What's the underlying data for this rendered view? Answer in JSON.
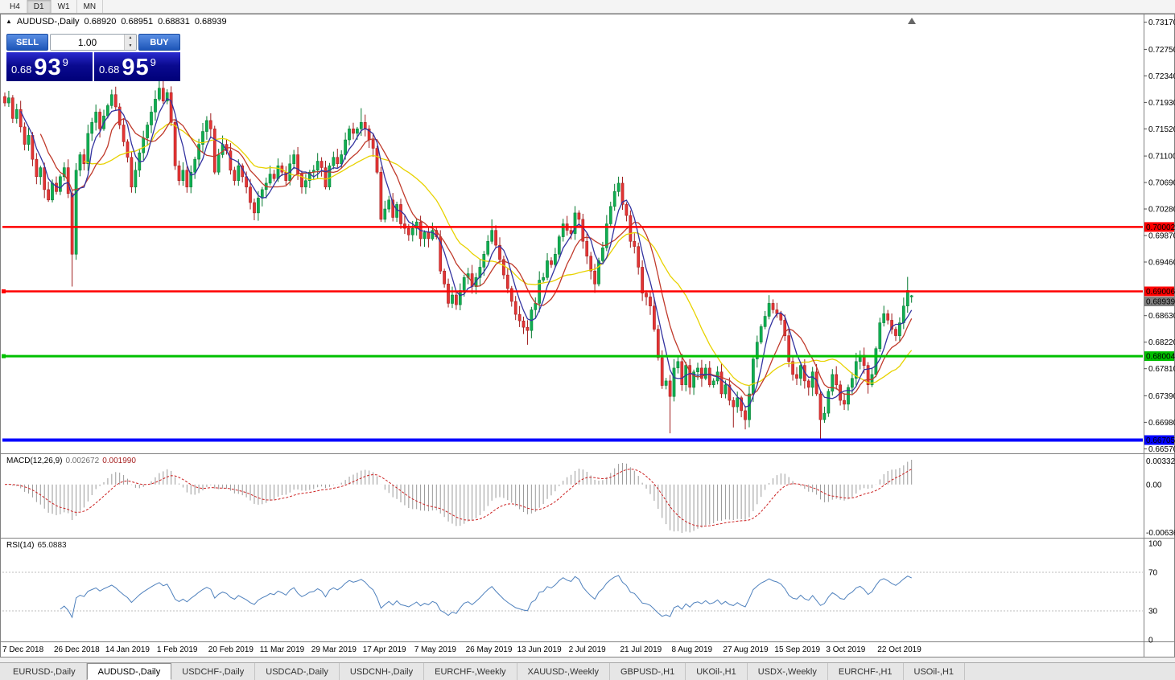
{
  "toolbar": {
    "timeframes": [
      {
        "label": "H4",
        "active": false
      },
      {
        "label": "D1",
        "active": true
      },
      {
        "label": "W1",
        "active": false
      },
      {
        "label": "MN",
        "active": false
      }
    ]
  },
  "chart_header": {
    "symbol": "AUDUSD-,Daily",
    "open": "0.68920",
    "high": "0.68951",
    "low": "0.68831",
    "close": "0.68939"
  },
  "trade_panel": {
    "sell_label": "SELL",
    "buy_label": "BUY",
    "volume": "1.00",
    "sell_price": {
      "base": "0.68",
      "big": "93",
      "sup": "9"
    },
    "buy_price": {
      "base": "0.68",
      "big": "95",
      "sup": "9"
    }
  },
  "price_axis": {
    "ticks": [
      "0.73170",
      "0.72750",
      "0.72340",
      "0.71930",
      "0.71520",
      "0.71100",
      "0.70690",
      "0.70280",
      "0.69870",
      "0.69460",
      "0.68630",
      "0.68220",
      "0.67810",
      "0.67390",
      "0.66980",
      "0.66570"
    ]
  },
  "hlines": [
    {
      "value": "0.70002",
      "price": 0.70002,
      "color": "#ff0000",
      "width": 2.5,
      "handle": false
    },
    {
      "value": "0.69006",
      "price": 0.69006,
      "color": "#ff0000",
      "width": 2.5,
      "handle": true
    },
    {
      "value": "0.68004",
      "price": 0.68004,
      "color": "#00c000",
      "width": 3,
      "handle": true
    },
    {
      "value": "0.66705",
      "price": 0.66705,
      "color": "#0000ff",
      "width": 4,
      "handle": false
    }
  ],
  "current_price": {
    "value": "0.68939",
    "price": 0.68939,
    "color": "#808080"
  },
  "macd_panel": {
    "label": "MACD(12,26,9)",
    "main_value": "0.002672",
    "signal_value": "0.001990",
    "axis": {
      "top": "0.00332",
      "zero": "0.00",
      "bottom": "-0.00636"
    },
    "histogram_color": "#9a9a9a",
    "signal_color": "#cc2222"
  },
  "rsi_panel": {
    "label": "RSI(14)",
    "value": "65.0883",
    "axis": [
      "100",
      "70",
      "30",
      "0"
    ],
    "levels": [
      70,
      30
    ],
    "line_color": "#4f81bd"
  },
  "theme": {
    "bull_fill": "#0fae52",
    "bull_stroke": "#067a30",
    "bear_fill": "#e33434",
    "bear_stroke": "#9e1c1c",
    "background": "#ffffff"
  },
  "chart_data": {
    "type": "candlestick",
    "symbol": "AUDUSD-",
    "timeframe": "Daily",
    "y_domain": [
      0.665,
      0.7329
    ],
    "x_labels": [
      "7 Dec 2018",
      "26 Dec 2018",
      "14 Jan 2019",
      "1 Feb 2019",
      "20 Feb 2019",
      "11 Mar 2019",
      "29 Mar 2019",
      "17 Apr 2019",
      "7 May 2019",
      "26 May 2019",
      "13 Jun 2019",
      "2 Jul 2019",
      "21 Jul 2019",
      "8 Aug 2019",
      "27 Aug 2019",
      "15 Sep 2019",
      "3 Oct 2019",
      "22 Oct 2019"
    ],
    "bars_per_label": 13,
    "closes": [
      0.7192,
      0.72,
      0.7168,
      0.7182,
      0.7155,
      0.7128,
      0.7142,
      0.7105,
      0.7078,
      0.7092,
      0.7058,
      0.7042,
      0.7068,
      0.7055,
      0.7078,
      0.7092,
      0.7052,
      0.6958,
      0.7088,
      0.7112,
      0.7098,
      0.7145,
      0.7162,
      0.7178,
      0.7152,
      0.7172,
      0.7188,
      0.7205,
      0.7186,
      0.7158,
      0.7132,
      0.7108,
      0.7062,
      0.7088,
      0.7115,
      0.7138,
      0.7158,
      0.7178,
      0.7198,
      0.7215,
      0.7195,
      0.7208,
      0.7162,
      0.7095,
      0.7072,
      0.7088,
      0.7062,
      0.7085,
      0.7105,
      0.7128,
      0.7148,
      0.7165,
      0.7152,
      0.7085,
      0.7112,
      0.7128,
      0.7118,
      0.7088,
      0.7072,
      0.7095,
      0.7078,
      0.7062,
      0.7038,
      0.7022,
      0.7045,
      0.7058,
      0.7068,
      0.7082,
      0.7075,
      0.7095,
      0.7085,
      0.7072,
      0.7098,
      0.7112,
      0.7082,
      0.7062,
      0.7072,
      0.7085,
      0.7088,
      0.7102,
      0.7092,
      0.7062,
      0.7095,
      0.7108,
      0.7098,
      0.7112,
      0.7135,
      0.7152,
      0.7145,
      0.7152,
      0.7162,
      0.7152,
      0.7135,
      0.7122,
      0.7085,
      0.7012,
      0.7028,
      0.7042,
      0.7015,
      0.7035,
      0.7005,
      0.6998,
      0.6988,
      0.6998,
      0.7008,
      0.6982,
      0.6992,
      0.6982,
      0.6995,
      0.6985,
      0.6932,
      0.6912,
      0.6882,
      0.6895,
      0.688,
      0.6902,
      0.6922,
      0.6928,
      0.6908,
      0.6922,
      0.6938,
      0.6958,
      0.6978,
      0.6995,
      0.6972,
      0.695,
      0.6926,
      0.6905,
      0.6885,
      0.6865,
      0.6855,
      0.6845,
      0.684,
      0.6872,
      0.6882,
      0.6918,
      0.6922,
      0.6948,
      0.6942,
      0.6958,
      0.6985,
      0.7005,
      0.6995,
      0.699,
      0.7022,
      0.7012,
      0.6978,
      0.6955,
      0.6932,
      0.6912,
      0.6948,
      0.6968,
      0.7005,
      0.7032,
      0.7055,
      0.7068,
      0.7035,
      0.7018,
      0.6978,
      0.697,
      0.6938,
      0.6898,
      0.6892,
      0.6878,
      0.6842,
      0.6798,
      0.6755,
      0.6762,
      0.6738,
      0.6782,
      0.6792,
      0.6756,
      0.6786,
      0.6752,
      0.6776,
      0.6782,
      0.6766,
      0.6782,
      0.6756,
      0.6762,
      0.6776,
      0.6742,
      0.6756,
      0.6732,
      0.6722,
      0.6736,
      0.6716,
      0.6702,
      0.6742,
      0.6796,
      0.6822,
      0.6846,
      0.6862,
      0.6882,
      0.6872,
      0.6866,
      0.6856,
      0.6832,
      0.6792,
      0.6772,
      0.6766,
      0.6786,
      0.6762,
      0.6752,
      0.6776,
      0.6742,
      0.6702,
      0.6712,
      0.6746,
      0.6772,
      0.6756,
      0.6732,
      0.6726,
      0.6752,
      0.6766,
      0.6792,
      0.6802,
      0.6786,
      0.6756,
      0.6772,
      0.6812,
      0.6852,
      0.6866,
      0.6856,
      0.6842,
      0.6832,
      0.6852,
      0.6878,
      0.6902,
      0.68939
    ],
    "special_wicks": [
      {
        "i": 17,
        "l": 0.6908
      },
      {
        "i": 39,
        "h": 0.7228
      },
      {
        "i": 90,
        "h": 0.7184
      },
      {
        "i": 123,
        "h": 0.7012
      },
      {
        "i": 132,
        "l": 0.6818
      },
      {
        "i": 155,
        "h": 0.7078
      },
      {
        "i": 168,
        "l": 0.6681
      },
      {
        "i": 184,
        "l": 0.669
      },
      {
        "i": 187,
        "l": 0.6687
      },
      {
        "i": 206,
        "l": 0.6672
      },
      {
        "i": 228,
        "h": 0.6923
      },
      {
        "i": 229,
        "o": 0.6892,
        "h": 0.68951,
        "l": 0.68831
      }
    ],
    "moving_averages": [
      {
        "period": 21,
        "color": "#e8d200"
      },
      {
        "period": 10,
        "color": "#c03a2b"
      },
      {
        "period": 5,
        "color": "#3333a0"
      }
    ]
  },
  "tabs": [
    {
      "label": "EURUSD-,Daily",
      "active": false
    },
    {
      "label": "AUDUSD-,Daily",
      "active": true
    },
    {
      "label": "USDCHF-,Daily",
      "active": false
    },
    {
      "label": "USDCAD-,Daily",
      "active": false
    },
    {
      "label": "USDCNH-,Daily",
      "active": false
    },
    {
      "label": "EURCHF-,Weekly",
      "active": false
    },
    {
      "label": "XAUUSD-,Weekly",
      "active": false
    },
    {
      "label": "GBPUSD-,H1",
      "active": false
    },
    {
      "label": "UKOil-,H1",
      "active": false
    },
    {
      "label": "USDX-,Weekly",
      "active": false
    },
    {
      "label": "EURCHF-,H1",
      "active": false
    },
    {
      "label": "USOil-,H1",
      "active": false
    }
  ]
}
